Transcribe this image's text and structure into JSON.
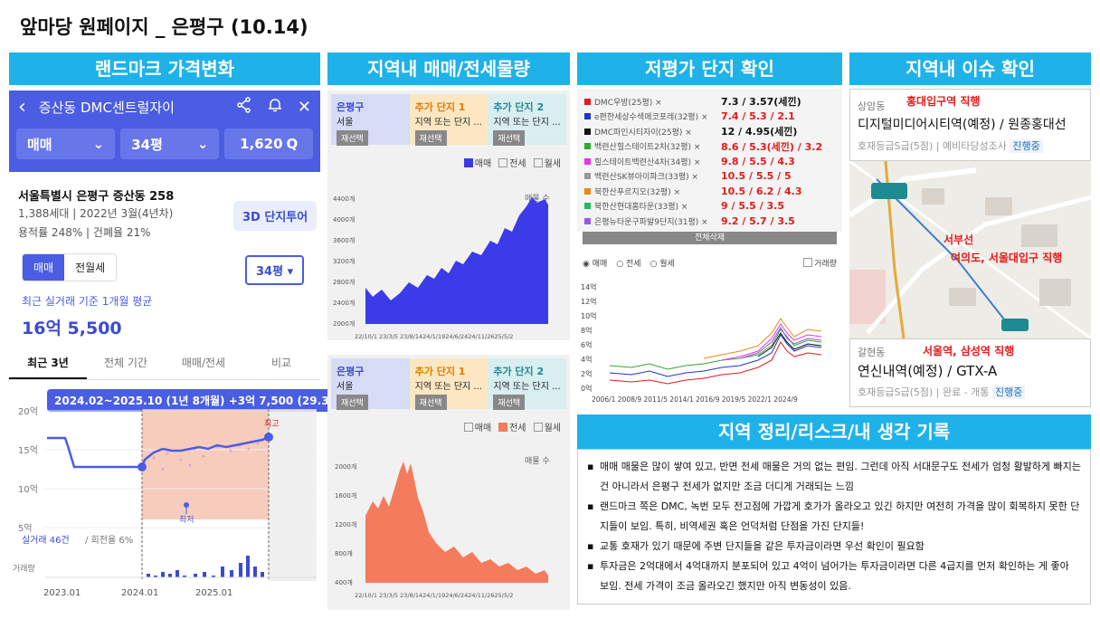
{
  "page_title": "앞마당 원페이지 _ 은평구 (10.14)",
  "headers": {
    "p1": "랜드마크 가격변화",
    "p2": "지역내 매매/전세물량",
    "p3": "저평가 단지 확인",
    "p4": "지역내 이슈 확인",
    "p5": "지역 정리/리스크/내 생각 기록"
  },
  "landmark": {
    "back_icon": "chevron-left-icon",
    "title": "증산동 DMC센트럴자이",
    "filters": [
      "매매",
      "34평",
      "1,620"
    ],
    "address": "서울특별시 은평구 증산동 258",
    "info1": "1,388세대 | 2022년 3월(4년차)",
    "info2": "용적률 248% | 건폐율 21%",
    "tour_btn": "3D 단지투어",
    "toggle": [
      "매매",
      "전월세"
    ],
    "size_select": "34평",
    "avg_label": "최근 실거래 기준 1개월 평균",
    "avg_price": "16억 5,500",
    "tabs": [
      "최근 3년",
      "전체 기간",
      "매매/전세",
      "비교"
    ],
    "tooltip": "2024.02~2025.10 (1년 8개월) +3억 7,500 (29.3%)",
    "y_labels": [
      "20억",
      "15억",
      "10억",
      "5억"
    ],
    "x_labels": [
      "2023.01",
      "2024.01",
      "2025.01"
    ],
    "max_label": "최고",
    "min_label": "최저",
    "count_prefix": "실거래 46건",
    "count_suffix": "/ 회전율 6%",
    "volume_label": "거래량"
  },
  "supply": {
    "selectors": [
      {
        "title": "은평구",
        "sub": "서울",
        "btn": "재선택"
      },
      {
        "title": "추가 단지 1",
        "sub": "지역 또는 단지 ...",
        "btn": "재선택"
      },
      {
        "title": "추가 단지 2",
        "sub": "지역 또는 단지 ...",
        "btn": "재선택"
      }
    ],
    "legend": [
      "매매",
      "전세",
      "월세"
    ],
    "chart1_label": "매물 수",
    "chart1_y": [
      "4400개",
      "4000개",
      "3600개",
      "3200개",
      "2800개",
      "2400개",
      "2000개"
    ],
    "chart2_label": "매물 수",
    "chart2_y": [
      "2000개",
      "1600개",
      "1200개",
      "800개",
      "400개"
    ],
    "x_labels": "22/10/1 23/3/5 23/8/1424/1/1924/6/2424/11/2625/5/2"
  },
  "undervalued": {
    "rows": [
      {
        "name": "DMC우방(25평) ×",
        "val": "7.3 / 3.57(세낀)",
        "color": "#e51a1a",
        "black": true
      },
      {
        "name": "e편한세상수색에코포레(32평) ×",
        "val": "7.4 / 5.3 / 2.1",
        "color": "#2233cc",
        "black": false
      },
      {
        "name": "DMC파인시티자이(25평) ×",
        "val": "12 / 4.95(세낀)",
        "color": "#111111",
        "black": true
      },
      {
        "name": "백련산힐스테이트2차(32평) ×",
        "val": "8.6 / 5.3(세낀) / 3.2",
        "color": "#2eaa2e",
        "black": false
      },
      {
        "name": "힐스테이트백련산4차(34평) ×",
        "val": "9.8 / 5.5 / 4.3",
        "color": "#e833e8",
        "black": false
      },
      {
        "name": "백련산SK뷰아이파크(33평) ×",
        "val": "10.5 / 5.5 / 5",
        "color": "#999999",
        "black": false
      },
      {
        "name": "북한산푸르지오(32평) ×",
        "val": "10.5 / 6.2 / 4.3",
        "color": "#e88a1a",
        "black": false
      },
      {
        "name": "북한산현대홈타운(33평) ×",
        "val": "9 / 5.5 / 3.5",
        "color": "#22bb66",
        "black": false
      },
      {
        "name": "은평뉴타운구파발9단지(31평) ×",
        "val": "9.2 / 5.7 / 3.5",
        "color": "#9955ee",
        "black": false
      }
    ],
    "delete_all": "전체삭제",
    "legend": [
      "매매",
      "전세",
      "월세"
    ],
    "volume_check": "거래량",
    "y_labels": [
      "14억",
      "12억",
      "10억",
      "8억",
      "6억",
      "4억",
      "2억",
      "0억"
    ],
    "x_labels": "2006/1  2008/9  2011/5  2014/1  2016/9  2019/5  2022/1  2024/9"
  },
  "issues": {
    "card1": {
      "loc": "상암동",
      "red": "홍대입구역 직행",
      "title": "디지털미디어시티역(예정) / 원종홍대선",
      "grade": "호재등급S급(5점)",
      "stage": "예비타당성조사",
      "status": "진행중"
    },
    "map": {
      "line_name": "서부선",
      "line_desc": "여의도, 서울대입구 직행"
    },
    "card2": {
      "loc": "갈현동",
      "red": "서울역, 삼성역 직행",
      "title": "연신내역(예정) / GTX-A",
      "grade": "호재등급S급(5점)",
      "stage": "완료 - 개통",
      "status": "진행중"
    }
  },
  "notes": [
    "매매 매물은 많이 쌓여 있고, 반면 전세 매물은 거의 없는 편임. 그런데 아직 서대문구도 전세가 엄청 활발하게 빠지는 건 아니라서 은평구 전세가 없지만 조금 더디게 거래되는 느낌",
    "랜드마크 쪽은 DMC, 녹번 모두 전고점에 가깝게 호가가 올라오고 있긴 하지만 여전히 가격을 많이 회복하지 못한 단지들이 보임. 특히, 비역세권 혹은 언덕처럼 단점을 가진 단지들!",
    "교통 호재가 있기 때문에 주변 단지들을 같은 투자금이라면 우선 확인이 필요함",
    "투자금은 2억대에서 4억대까지 분포되어 있고 4억이 넘어가는 투자금이라면 다른 4급지를 먼저 확인하는 게 좋아 보임. 전세 가격이 조금 올라오긴 했지만 아직 변동성이 있음."
  ]
}
